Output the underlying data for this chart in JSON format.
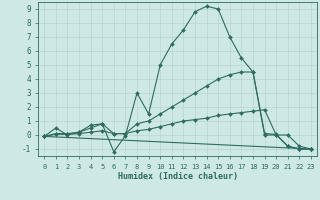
{
  "xlabel": "Humidex (Indice chaleur)",
  "xlim": [
    -0.5,
    23.5
  ],
  "ylim": [
    -1.5,
    9.5
  ],
  "xticks": [
    0,
    1,
    2,
    3,
    4,
    5,
    6,
    7,
    8,
    9,
    10,
    11,
    12,
    13,
    14,
    15,
    16,
    17,
    18,
    19,
    20,
    21,
    22,
    23
  ],
  "yticks": [
    -1,
    0,
    1,
    2,
    3,
    4,
    5,
    6,
    7,
    8,
    9
  ],
  "background_color": "#cde8e5",
  "grid_color": "#b8d4d2",
  "line_color": "#2e6b60",
  "lines": [
    {
      "x": [
        0,
        1,
        2,
        3,
        4,
        5,
        6,
        7,
        8,
        9,
        10,
        11,
        12,
        13,
        14,
        15,
        16,
        17,
        18,
        19,
        20,
        21,
        22,
        23
      ],
      "y": [
        -0.1,
        0.5,
        0.0,
        0.2,
        0.7,
        0.8,
        -1.2,
        -0.05,
        3.0,
        1.5,
        5.0,
        6.5,
        7.5,
        8.8,
        9.2,
        9.0,
        7.0,
        5.5,
        4.5,
        0.1,
        0.05,
        -0.8,
        -1.0,
        -1.0
      ]
    },
    {
      "x": [
        0,
        1,
        2,
        3,
        4,
        5,
        6,
        7,
        8,
        9,
        10,
        11,
        12,
        13,
        14,
        15,
        16,
        17,
        18,
        19,
        20,
        21,
        22,
        23
      ],
      "y": [
        -0.1,
        0.1,
        0.1,
        0.2,
        0.5,
        0.8,
        0.1,
        0.1,
        0.8,
        1.0,
        1.5,
        2.0,
        2.5,
        3.0,
        3.5,
        4.0,
        4.3,
        4.5,
        4.5,
        0.0,
        0.0,
        -0.8,
        -1.0,
        -1.0
      ]
    },
    {
      "x": [
        0,
        1,
        2,
        3,
        4,
        5,
        6,
        7,
        8,
        9,
        10,
        11,
        12,
        13,
        14,
        15,
        16,
        17,
        18,
        19,
        20,
        21,
        22,
        23
      ],
      "y": [
        -0.1,
        0.05,
        0.05,
        0.1,
        0.2,
        0.3,
        0.1,
        0.1,
        0.3,
        0.4,
        0.6,
        0.8,
        1.0,
        1.1,
        1.2,
        1.4,
        1.5,
        1.6,
        1.7,
        1.8,
        0.0,
        0.0,
        -0.8,
        -1.0
      ]
    },
    {
      "x": [
        0,
        23
      ],
      "y": [
        -0.1,
        -1.0
      ]
    }
  ]
}
